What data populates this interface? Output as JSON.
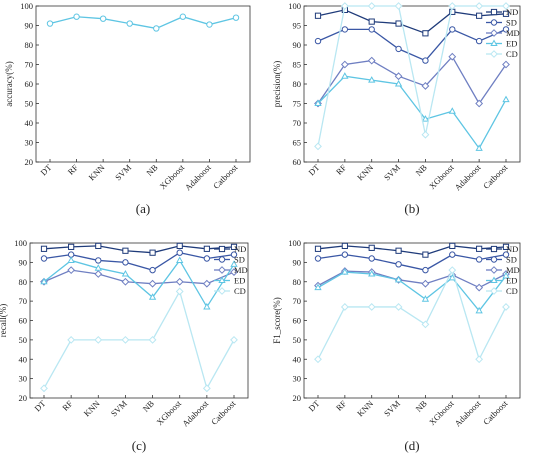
{
  "series_colors": {
    "ND": "#1f3b7a",
    "SD": "#3a57a5",
    "MD": "#6f7fc2",
    "ED": "#5ec5e3",
    "CD": "#b9e7f2",
    "accuracy": "#5ec5e3"
  },
  "chart_data": [
    {
      "type": "line",
      "panel_label": "(a)",
      "ylabel": "accuracy(%)",
      "xlabel": "",
      "categories": [
        "DT",
        "RF",
        "KNN",
        "SVM",
        "NB",
        "XGboost",
        "Adaboost",
        "Catboost"
      ],
      "yticks": [
        20,
        30,
        40,
        50,
        60,
        70,
        80,
        90,
        100
      ],
      "ylim": [
        20,
        100
      ],
      "legend_position": "none",
      "series": [
        {
          "values": [
            91,
            94.5,
            93.5,
            91,
            88.5,
            94.5,
            90.5,
            94
          ]
        }
      ]
    },
    {
      "type": "line",
      "panel_label": "(b)",
      "ylabel": "precision(%)",
      "xlabel": "",
      "categories": [
        "DT",
        "RF",
        "KNN",
        "SVM",
        "NB",
        "XGboost",
        "Adaboost",
        "Catboost"
      ],
      "yticks": [
        60,
        65,
        70,
        75,
        80,
        85,
        90,
        95,
        100
      ],
      "ylim": [
        60,
        100
      ],
      "legend_position": "top-right",
      "series": [
        {
          "name": "ND",
          "values": [
            97.5,
            99,
            96,
            95.5,
            93,
            98.5,
            97.5,
            98
          ]
        },
        {
          "name": "SD",
          "values": [
            91,
            94,
            94,
            89,
            86,
            94,
            91,
            94
          ]
        },
        {
          "name": "MD",
          "values": [
            75,
            85,
            86,
            82,
            79.5,
            87,
            75,
            85
          ]
        },
        {
          "name": "ED",
          "values": [
            75,
            82,
            81,
            80,
            71,
            73,
            63.5,
            76
          ]
        },
        {
          "name": "CD",
          "values": [
            64,
            100,
            100,
            100,
            67,
            100,
            100,
            100
          ]
        }
      ]
    },
    {
      "type": "line",
      "panel_label": "(c)",
      "ylabel": "recall(%)",
      "xlabel": "",
      "categories": [
        "DT",
        "RF",
        "KNN",
        "SVM",
        "NB",
        "XGboost",
        "Adaboost",
        "Catboost"
      ],
      "yticks": [
        20,
        30,
        40,
        50,
        60,
        70,
        80,
        90,
        100
      ],
      "ylim": [
        20,
        100
      ],
      "legend_position": "top-right",
      "series": [
        {
          "name": "ND",
          "values": [
            97,
            98,
            98.5,
            96,
            95,
            98.5,
            97,
            98
          ]
        },
        {
          "name": "SD",
          "values": [
            92,
            94,
            91,
            90,
            86,
            95,
            92,
            94
          ]
        },
        {
          "name": "MD",
          "values": [
            80,
            86,
            84,
            80,
            79,
            80,
            79,
            85
          ]
        },
        {
          "name": "ED",
          "values": [
            80,
            91,
            87,
            84,
            72,
            91,
            67,
            89
          ]
        },
        {
          "name": "CD",
          "values": [
            25,
            50,
            50,
            50,
            50,
            75,
            25,
            50
          ]
        }
      ]
    },
    {
      "type": "line",
      "panel_label": "(d)",
      "ylabel": "F1_score(%)",
      "xlabel": "",
      "categories": [
        "DT",
        "RF",
        "KNN",
        "SVM",
        "NB",
        "XGboost",
        "Adaboost",
        "Catboost"
      ],
      "yticks": [
        20,
        30,
        40,
        50,
        60,
        70,
        80,
        90,
        100
      ],
      "ylim": [
        20,
        100
      ],
      "legend_position": "top-right",
      "series": [
        {
          "name": "ND",
          "values": [
            97,
            98.5,
            97.5,
            96,
            94,
            98.5,
            97,
            98
          ]
        },
        {
          "name": "SD",
          "values": [
            92,
            94,
            92,
            89,
            86,
            94,
            91.5,
            94
          ]
        },
        {
          "name": "MD",
          "values": [
            78,
            85.5,
            85,
            81,
            79,
            83.5,
            77,
            84
          ]
        },
        {
          "name": "ED",
          "values": [
            77,
            85,
            84,
            81,
            71,
            82,
            65,
            83
          ]
        },
        {
          "name": "CD",
          "values": [
            40,
            67,
            67,
            67,
            58,
            86,
            40,
            67
          ]
        }
      ]
    }
  ]
}
